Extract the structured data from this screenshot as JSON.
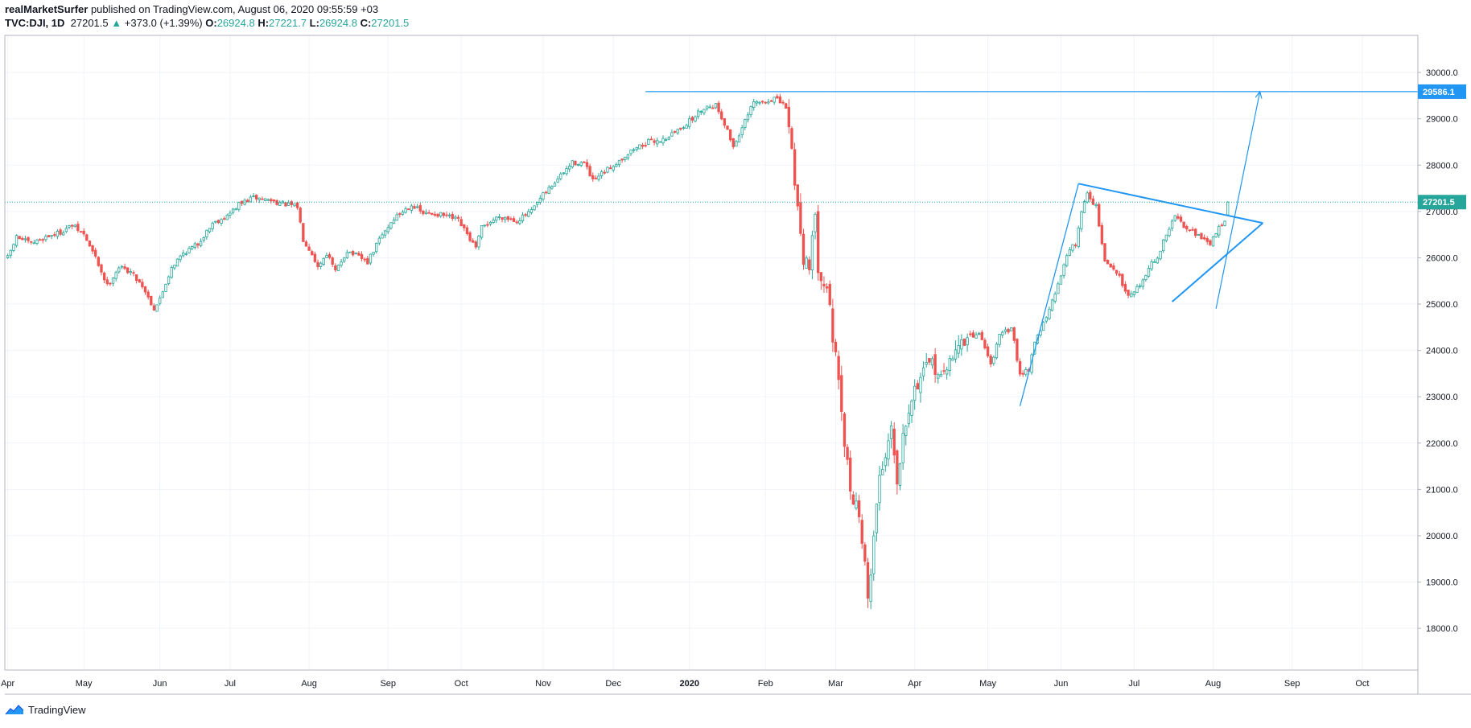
{
  "header": {
    "author": "realMarketSurfer",
    "published_text": "published on TradingView.com, August 06, 2020 09:55:59 +03",
    "symbol": "TVC:DJI, 1D",
    "last": "27201.5",
    "change": "+373.0 (+1.39%)",
    "o_label": "O:",
    "o_value": "26924.8",
    "h_label": "H:",
    "h_value": "27221.7",
    "l_label": "L:",
    "l_value": "26924.8",
    "c_label": "C:",
    "c_value": "27201.5"
  },
  "footer": {
    "brand": "TradingView"
  },
  "colors": {
    "up": "#26a69a",
    "down": "#ef5350",
    "drawing": "#2196f3",
    "grid": "#f0f3fa",
    "axis": "#b2b5be"
  },
  "chart_data": {
    "type": "candlestick",
    "title": "TVC:DJI, 1D",
    "ylim": [
      17100,
      30800
    ],
    "y_ticks": [
      18000,
      19000,
      20000,
      21000,
      22000,
      23000,
      24000,
      25000,
      26000,
      27000,
      28000,
      29000,
      30000
    ],
    "y_tick_labels": [
      "18000.0",
      "19000.0",
      "20000.0",
      "21000.0",
      "22000.0",
      "23000.0",
      "24000.0",
      "25000.0",
      "26000.0",
      "27000.0",
      "28000.0",
      "29000.0",
      "30000.0"
    ],
    "x_domain": [
      -1,
      482
    ],
    "x_ticks": [
      {
        "label": "Apr",
        "i": 0,
        "bold": false
      },
      {
        "label": "May",
        "i": 26,
        "bold": false
      },
      {
        "label": "Jun",
        "i": 52,
        "bold": false
      },
      {
        "label": "Jul",
        "i": 76,
        "bold": false
      },
      {
        "label": "Aug",
        "i": 103,
        "bold": false
      },
      {
        "label": "Sep",
        "i": 130,
        "bold": false
      },
      {
        "label": "Oct",
        "i": 155,
        "bold": false
      },
      {
        "label": "Nov",
        "i": 183,
        "bold": false
      },
      {
        "label": "Dec",
        "i": 207,
        "bold": false
      },
      {
        "label": "2020",
        "i": 233,
        "bold": true
      },
      {
        "label": "Feb",
        "i": 259,
        "bold": false
      },
      {
        "label": "Mar",
        "i": 283,
        "bold": false
      },
      {
        "label": "Apr",
        "i": 310,
        "bold": false
      },
      {
        "label": "May",
        "i": 335,
        "bold": false
      },
      {
        "label": "Jun",
        "i": 360,
        "bold": false
      },
      {
        "label": "Jul",
        "i": 385,
        "bold": false
      },
      {
        "label": "Aug",
        "i": 412,
        "bold": false
      },
      {
        "label": "Sep",
        "i": 439,
        "bold": false
      },
      {
        "label": "Oct",
        "i": 463,
        "bold": false
      }
    ],
    "anchors": [
      [
        0,
        26000
      ],
      [
        3,
        26450
      ],
      [
        8,
        26300
      ],
      [
        13,
        26450
      ],
      [
        18,
        26550
      ],
      [
        22,
        26700
      ],
      [
        26,
        26500
      ],
      [
        30,
        26000
      ],
      [
        34,
        25400
      ],
      [
        38,
        25800
      ],
      [
        42,
        25700
      ],
      [
        46,
        25400
      ],
      [
        50,
        24900
      ],
      [
        52,
        25100
      ],
      [
        56,
        25800
      ],
      [
        60,
        26100
      ],
      [
        65,
        26300
      ],
      [
        70,
        26750
      ],
      [
        75,
        26900
      ],
      [
        79,
        27150
      ],
      [
        84,
        27300
      ],
      [
        89,
        27250
      ],
      [
        95,
        27150
      ],
      [
        99,
        27100
      ],
      [
        101,
        26400
      ],
      [
        104,
        26100
      ],
      [
        106,
        25800
      ],
      [
        109,
        26100
      ],
      [
        112,
        25700
      ],
      [
        116,
        26150
      ],
      [
        119,
        26050
      ],
      [
        123,
        25900
      ],
      [
        127,
        26400
      ],
      [
        132,
        26850
      ],
      [
        138,
        27150
      ],
      [
        142,
        26950
      ],
      [
        146,
        26950
      ],
      [
        150,
        26900
      ],
      [
        154,
        26800
      ],
      [
        157,
        26500
      ],
      [
        160,
        26200
      ],
      [
        162,
        26650
      ],
      [
        168,
        26900
      ],
      [
        174,
        26800
      ],
      [
        179,
        27000
      ],
      [
        183,
        27350
      ],
      [
        188,
        27700
      ],
      [
        193,
        28050
      ],
      [
        197,
        28050
      ],
      [
        200,
        27650
      ],
      [
        203,
        27800
      ],
      [
        209,
        28100
      ],
      [
        214,
        28350
      ],
      [
        219,
        28500
      ],
      [
        224,
        28550
      ],
      [
        229,
        28750
      ],
      [
        234,
        29000
      ],
      [
        238,
        29250
      ],
      [
        242,
        29300
      ],
      [
        245,
        28900
      ],
      [
        248,
        28400
      ],
      [
        251,
        28800
      ],
      [
        255,
        29350
      ],
      [
        259,
        29350
      ],
      [
        262,
        29450
      ],
      [
        266,
        29250
      ],
      [
        268,
        28300
      ],
      [
        270,
        27100
      ],
      [
        272,
        26000
      ],
      [
        274,
        25900
      ],
      [
        276,
        26800
      ],
      [
        277,
        25800
      ],
      [
        280,
        25400
      ],
      [
        283,
        23800
      ],
      [
        286,
        22000
      ],
      [
        288,
        21000
      ],
      [
        291,
        20500
      ],
      [
        293,
        19300
      ],
      [
        294,
        18600
      ],
      [
        296,
        20000
      ],
      [
        298,
        21300
      ],
      [
        300,
        21700
      ],
      [
        302,
        22500
      ],
      [
        304,
        21100
      ],
      [
        306,
        22300
      ],
      [
        309,
        23000
      ],
      [
        312,
        23450
      ],
      [
        316,
        23700
      ],
      [
        320,
        23400
      ],
      [
        324,
        24100
      ],
      [
        328,
        24200
      ],
      [
        332,
        24400
      ],
      [
        336,
        23700
      ],
      [
        339,
        24300
      ],
      [
        343,
        24500
      ],
      [
        346,
        23500
      ],
      [
        349,
        23600
      ],
      [
        351,
        24200
      ],
      [
        355,
        24700
      ],
      [
        359,
        25400
      ],
      [
        362,
        26100
      ],
      [
        365,
        26300
      ],
      [
        367,
        27000
      ],
      [
        369,
        27400
      ],
      [
        372,
        27100
      ],
      [
        375,
        25900
      ],
      [
        379,
        25700
      ],
      [
        383,
        25200
      ],
      [
        387,
        25400
      ],
      [
        390,
        25800
      ],
      [
        393,
        26000
      ],
      [
        396,
        26500
      ],
      [
        399,
        26900
      ],
      [
        402,
        26700
      ],
      [
        405,
        26600
      ],
      [
        408,
        26400
      ],
      [
        411,
        26300
      ],
      [
        414,
        26650
      ],
      [
        416,
        26830
      ],
      [
        417,
        27201.5
      ],
      [
        420,
        27300
      ],
      [
        482,
        27300
      ]
    ],
    "visible_last_index": 417,
    "last_candle": {
      "o": 26924.8,
      "h": 27221.7,
      "l": 26924.8,
      "c": 27201.5
    },
    "last_price": 27201.5,
    "last_price_label": "27201.5",
    "target_level": 29586.1,
    "target_level_label": "29586.1",
    "drawings": {
      "horizontal_target": {
        "from_i": 218,
        "to_i": 482,
        "price": 29586.1
      },
      "wave_up": [
        [
          346,
          22800
        ],
        [
          366,
          27600
        ]
      ],
      "triangle_top": [
        [
          366,
          27600
        ],
        [
          429,
          26750
        ]
      ],
      "triangle_bottom": [
        [
          398,
          25050
        ],
        [
          429,
          26750
        ]
      ],
      "projection_arrow": [
        [
          413,
          24900
        ],
        [
          428,
          29586.1
        ]
      ]
    }
  }
}
